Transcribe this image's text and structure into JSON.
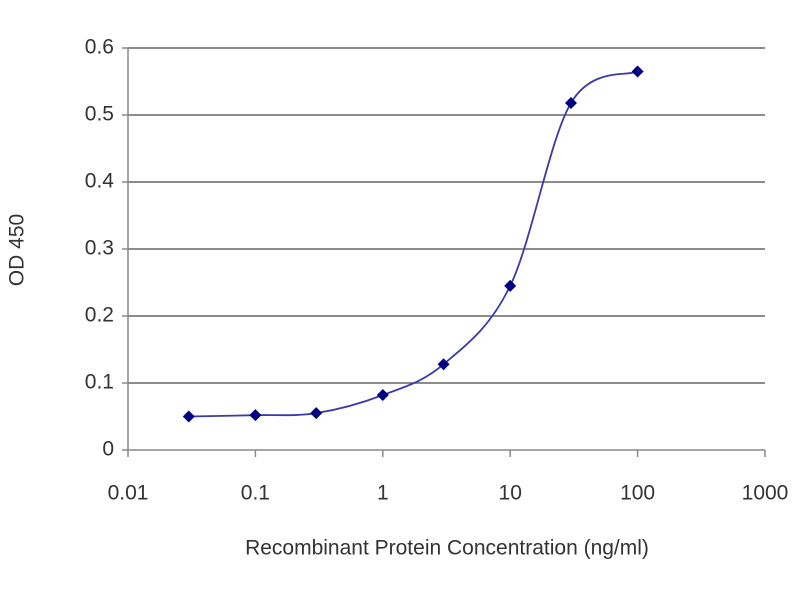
{
  "chart_data": {
    "type": "line",
    "xlabel": "Recombinant Protein Concentration (ng/ml)",
    "ylabel": "OD 450",
    "x": [
      0.03,
      0.1,
      0.3,
      1,
      3,
      10,
      30,
      100
    ],
    "series": [
      {
        "color": "#000080",
        "values": [
          0.05,
          0.052,
          0.055,
          0.082,
          0.128,
          0.245,
          0.518,
          0.565
        ]
      }
    ],
    "xscale": "log",
    "xlim": [
      0.01,
      1000
    ],
    "xticks": [
      0.01,
      0.1,
      1,
      10,
      100,
      1000
    ],
    "ylim": [
      0,
      0.6
    ],
    "yticks": [
      0,
      0.1,
      0.2,
      0.3,
      0.4,
      0.5,
      0.6
    ],
    "grid": true,
    "line_color": "#3a3aa8"
  }
}
